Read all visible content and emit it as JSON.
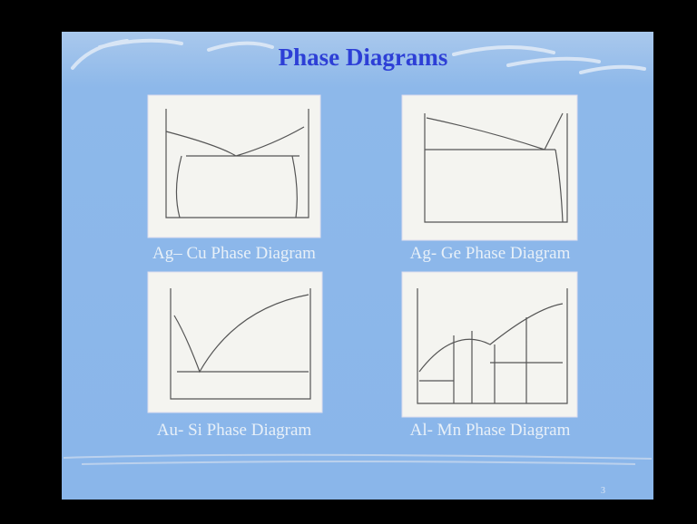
{
  "header": {
    "title": "Phase Diagrams"
  },
  "diagrams": [
    {
      "caption": "Ag– Cu Phase Diagram"
    },
    {
      "caption": "Ag- Ge Phase Diagram"
    },
    {
      "caption": "Au- Si Phase Diagram"
    },
    {
      "caption": "Al- Mn Phase Diagram"
    }
  ],
  "footer": {
    "page_number": "3"
  }
}
